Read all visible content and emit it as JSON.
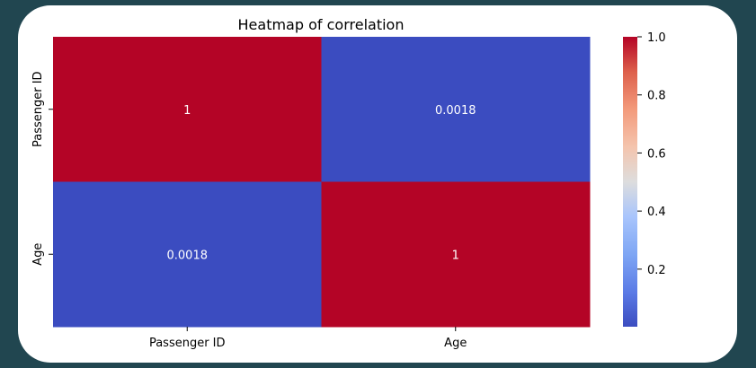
{
  "background": "#214650",
  "card": {
    "background": "#ffffff"
  },
  "chart_data": {
    "type": "heatmap",
    "title": "Heatmap of correlation",
    "xlabel": "",
    "ylabel": "",
    "x_categories": [
      "Passenger ID",
      "Age"
    ],
    "y_categories": [
      "Passenger ID",
      "Age"
    ],
    "values": [
      [
        1,
        0.0018
      ],
      [
        0.0018,
        1
      ]
    ],
    "annotations": [
      [
        "1",
        "0.0018"
      ],
      [
        "0.0018",
        "1"
      ]
    ],
    "colormap": "coolwarm",
    "colorbar": {
      "min": 0.0018,
      "max": 1.0,
      "ticks": [
        0.2,
        0.4,
        0.6,
        0.8,
        1.0
      ],
      "tick_labels": [
        "0.2",
        "0.4",
        "0.6",
        "0.8",
        "1.0"
      ]
    },
    "colors": {
      "low": "#3b4cc0",
      "mid": "#dddddd",
      "high": "#b40426"
    },
    "grid": false,
    "legend": "colorbar-right"
  }
}
